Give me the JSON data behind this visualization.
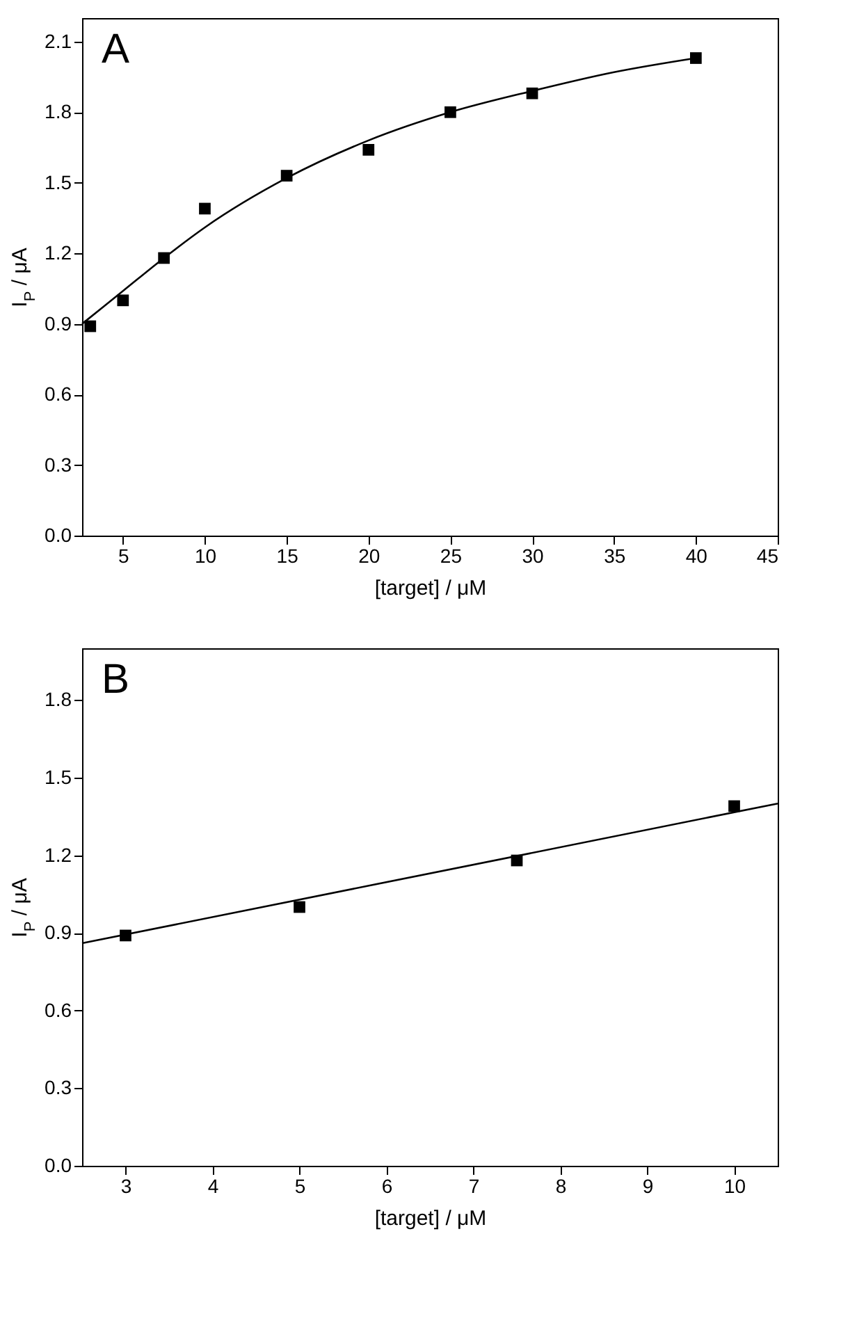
{
  "chart_data": [
    {
      "type": "scatter",
      "annotations": [
        "A"
      ],
      "xlabel": "[target] / μM",
      "ylabel": "I$_{P}$ / μA",
      "xlim": [
        2.5,
        45
      ],
      "ylim": [
        0,
        2.2
      ],
      "xticks": [
        5,
        10,
        15,
        20,
        25,
        30,
        35,
        40,
        45
      ],
      "yticks": [
        {
          "value": 0,
          "label": "0.0"
        },
        0.3,
        0.6,
        0.9,
        1.2,
        1.5,
        1.8,
        2.1
      ],
      "grid": false,
      "series": [
        {
          "type": "scatter",
          "marker": "square",
          "color": "#000000",
          "x": [
            3,
            5,
            7.5,
            10,
            15,
            20,
            25,
            30,
            40
          ],
          "values": [
            0.89,
            1.0,
            1.18,
            1.39,
            1.53,
            1.64,
            1.8,
            1.88,
            2.03
          ]
        },
        {
          "type": "line",
          "marker": "none",
          "color": "#000000",
          "line_style": "solid",
          "x": [
            2.5,
            5,
            7.5,
            10,
            15,
            20,
            25,
            30,
            35,
            40
          ],
          "values": [
            0.9,
            1.04,
            1.18,
            1.31,
            1.52,
            1.68,
            1.8,
            1.89,
            1.97,
            2.03
          ]
        }
      ]
    },
    {
      "type": "scatter",
      "annotations": [
        "B"
      ],
      "xlabel": "[target] / μM",
      "ylabel": "I$_{P}$ / μA",
      "xlim": [
        2.5,
        10.5
      ],
      "ylim": [
        0,
        2.0
      ],
      "xticks": [
        3,
        4,
        5,
        6,
        7,
        8,
        9,
        10
      ],
      "yticks": [
        {
          "value": 0,
          "label": "0.0"
        },
        0.3,
        0.6,
        0.9,
        1.2,
        1.5,
        1.8
      ],
      "grid": false,
      "series": [
        {
          "type": "scatter",
          "marker": "square",
          "color": "#000000",
          "x": [
            3,
            5,
            7.5,
            10
          ],
          "values": [
            0.89,
            1.0,
            1.18,
            1.39
          ]
        },
        {
          "type": "line",
          "marker": "none",
          "color": "#000000",
          "line_style": "solid",
          "x": [
            2.5,
            10.5
          ],
          "values": [
            0.86,
            1.4
          ]
        }
      ]
    }
  ]
}
